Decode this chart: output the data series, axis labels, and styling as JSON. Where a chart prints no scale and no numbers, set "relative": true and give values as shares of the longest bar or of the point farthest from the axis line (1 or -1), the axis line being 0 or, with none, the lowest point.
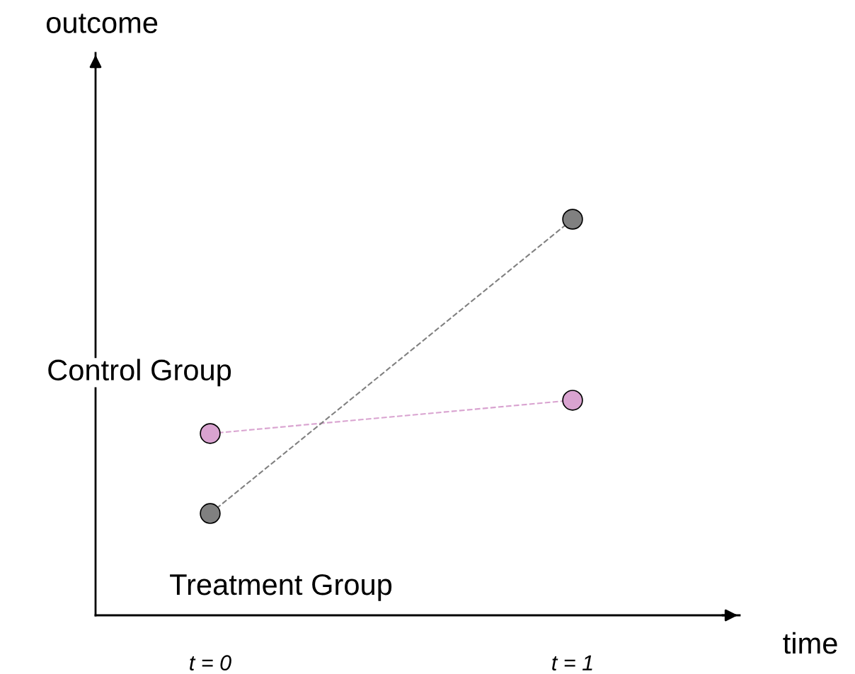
{
  "chart_data": {
    "type": "line",
    "relative": true,
    "xlabel": "time",
    "annotations": [
      "outcome"
    ],
    "categories": [
      "t = 0",
      "t = 1"
    ],
    "series": [
      {
        "name": "Control Group",
        "color": "#d9a3d0",
        "values": [
          0.459,
          0.543
        ]
      },
      {
        "name": "Treatment Group",
        "color": "#808080",
        "values": [
          0.257,
          1.0
        ]
      }
    ],
    "marker": "circle",
    "line_style": "dashed",
    "grid": false,
    "legend": false,
    "tick_labels": "x"
  }
}
